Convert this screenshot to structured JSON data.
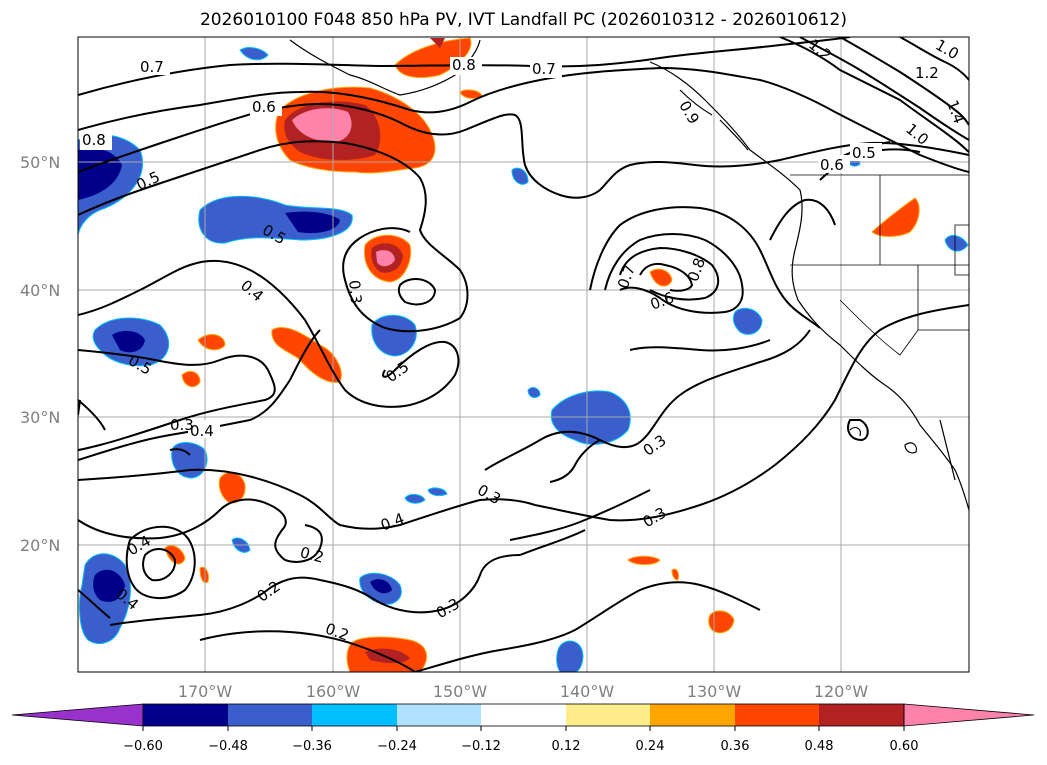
{
  "title": "2026010100 F048 850 hPa PV, IVT Landfall PC (2026010312 - 2026010612)",
  "axes": {
    "lat_ticks": [
      "20°N",
      "30°N",
      "40°N",
      "50°N"
    ],
    "lon_ticks": [
      "170°W",
      "160°W",
      "150°W",
      "140°W",
      "130°W",
      "120°W"
    ]
  },
  "contour_labels": {
    "c1": "0.7",
    "c2": "0.8",
    "c3": "0.7",
    "c4": "0.8",
    "c5": "0.6",
    "c6": "0.5",
    "c7": "0.5",
    "c8": "0.4",
    "c9": "0.3",
    "c10": "0.5",
    "c11": "0.5",
    "c12": "0.4",
    "c13": "0.4",
    "c14": "0.3",
    "c15": "0.2",
    "c16": "0.2",
    "c17": "0.2",
    "c18": "0.3",
    "c19": "0.4",
    "c20": "0.4",
    "c21": "0.3",
    "c22": "0.3",
    "c23": "0.7",
    "c24": "0.8",
    "c25": "0.6",
    "c26": "0.6",
    "c27": "0.5",
    "c28": "1.2",
    "c29": "1.2",
    "c30": "1.0",
    "c31": "1.0",
    "c32": "1.4",
    "c33": "0.3",
    "c34": "0.9"
  },
  "colorbar": {
    "ticks": [
      "−0.60",
      "−0.48",
      "−0.36",
      "−0.24",
      "−0.12",
      "0.12",
      "0.24",
      "0.36",
      "0.48",
      "0.60"
    ],
    "colors": [
      "#9932cc",
      "#00008b",
      "#3a5fcd",
      "#00bfff",
      "#b0e2ff",
      "#ffffff",
      "#ffec8b",
      "#ffa500",
      "#ff4500",
      "#b22222",
      "#ff82ab"
    ]
  }
}
